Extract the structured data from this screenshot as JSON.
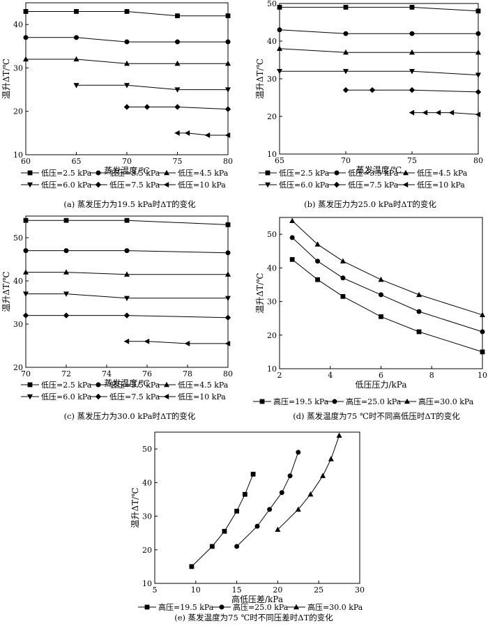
{
  "chart_data": [
    {
      "type": "line",
      "id": "a",
      "caption": "(a) 蒸发压力为19.5 kPa时ΔT的变化",
      "xlabel": "蒸发温度/℃",
      "ylabel": "温升ΔT/℃",
      "xlim": [
        60,
        80
      ],
      "ylim": [
        10,
        45
      ],
      "xticks": [
        60,
        65,
        70,
        75,
        80
      ],
      "yticks": [
        10,
        20,
        30,
        40
      ],
      "series": [
        {
          "name": "低压=2.5 kPa",
          "marker": "square",
          "x": [
            60,
            65,
            70,
            75,
            80
          ],
          "y": [
            43,
            43,
            43,
            42,
            42
          ]
        },
        {
          "name": "低压=3.5 kPa",
          "marker": "circle",
          "x": [
            60,
            65,
            70,
            75,
            80
          ],
          "y": [
            37,
            37,
            36,
            36,
            36
          ]
        },
        {
          "name": "低压=4.5 kPa",
          "marker": "triangle",
          "x": [
            60,
            65,
            70,
            75,
            80
          ],
          "y": [
            32,
            32,
            31,
            31,
            31
          ]
        },
        {
          "name": "低压=6.0 kPa",
          "marker": "tri-down",
          "x": [
            65,
            70,
            75,
            80
          ],
          "y": [
            26,
            26,
            25,
            25
          ]
        },
        {
          "name": "低压=7.5 kPa",
          "marker": "diamond",
          "x": [
            70,
            72,
            75,
            80
          ],
          "y": [
            21,
            21,
            21,
            20.5
          ]
        },
        {
          "name": "低压=10 kPa",
          "marker": "tri-left",
          "x": [
            75,
            76,
            78,
            80
          ],
          "y": [
            15,
            15,
            14.5,
            14.5
          ]
        }
      ]
    },
    {
      "type": "line",
      "id": "b",
      "caption": "(b) 蒸发压力为25.0 kPa时ΔT的变化",
      "xlabel": "蒸发温度/℃",
      "ylabel": "温升ΔT/℃",
      "xlim": [
        65,
        80
      ],
      "ylim": [
        10,
        50
      ],
      "xticks": [
        65,
        70,
        75,
        80
      ],
      "yticks": [
        10,
        20,
        30,
        40,
        50
      ],
      "series": [
        {
          "name": "低压=2.5 kPa",
          "marker": "square",
          "x": [
            65,
            70,
            75,
            80
          ],
          "y": [
            49,
            49,
            49,
            48
          ]
        },
        {
          "name": "低压=3.5 kPa",
          "marker": "circle",
          "x": [
            65,
            70,
            75,
            80
          ],
          "y": [
            43,
            42,
            42,
            42
          ]
        },
        {
          "name": "低压=4.5 kPa",
          "marker": "triangle",
          "x": [
            65,
            70,
            75,
            80
          ],
          "y": [
            38,
            37,
            37,
            37
          ]
        },
        {
          "name": "低压=6.0 kPa",
          "marker": "tri-down",
          "x": [
            65,
            70,
            75,
            80
          ],
          "y": [
            32,
            32,
            32,
            31
          ]
        },
        {
          "name": "低压=7.5 kPa",
          "marker": "diamond",
          "x": [
            70,
            72,
            75,
            80
          ],
          "y": [
            27,
            27,
            27,
            26.5
          ]
        },
        {
          "name": "低压=10 kPa",
          "marker": "tri-left",
          "x": [
            75,
            76,
            77,
            78,
            80
          ],
          "y": [
            21,
            21,
            21,
            21,
            20.5
          ]
        }
      ]
    },
    {
      "type": "line",
      "id": "c",
      "caption": "(c) 蒸发压力为30.0 kPa时ΔT的变化",
      "xlabel": "蒸发温度/℃",
      "ylabel": "温升ΔT/℃",
      "xlim": [
        70,
        80
      ],
      "ylim": [
        20,
        55
      ],
      "xticks": [
        70,
        72,
        74,
        76,
        78,
        80
      ],
      "yticks": [
        20,
        30,
        40,
        50
      ],
      "series": [
        {
          "name": "低压=2.5 kPa",
          "marker": "square",
          "x": [
            70,
            72,
            75,
            80
          ],
          "y": [
            54,
            54,
            54,
            53
          ]
        },
        {
          "name": "低压=3.5 kPa",
          "marker": "circle",
          "x": [
            70,
            72,
            75,
            80
          ],
          "y": [
            47,
            47,
            47,
            46.5
          ]
        },
        {
          "name": "低压=4.5 kPa",
          "marker": "triangle",
          "x": [
            70,
            72,
            75,
            80
          ],
          "y": [
            42,
            42,
            41.5,
            41.5
          ]
        },
        {
          "name": "低压=6.0 kPa",
          "marker": "tri-down",
          "x": [
            70,
            72,
            75,
            80
          ],
          "y": [
            37,
            37,
            36,
            36
          ]
        },
        {
          "name": "低压=7.5 kPa",
          "marker": "diamond",
          "x": [
            70,
            72,
            75,
            80
          ],
          "y": [
            32,
            32,
            32,
            31.5
          ]
        },
        {
          "name": "低压=10 kPa",
          "marker": "tri-left",
          "x": [
            75,
            76,
            78,
            80
          ],
          "y": [
            26,
            26,
            25.5,
            25.5
          ]
        }
      ]
    },
    {
      "type": "line",
      "id": "d",
      "caption": "(d) 蒸发温度为75 ℃时不同高低压时ΔT的变化",
      "xlabel": "低压压力/kPa",
      "ylabel": "温升ΔT/℃",
      "xlim": [
        2,
        10
      ],
      "ylim": [
        10,
        55
      ],
      "xticks": [
        2,
        4,
        6,
        8,
        10
      ],
      "yticks": [
        10,
        20,
        30,
        40,
        50
      ],
      "series": [
        {
          "name": "高压=19.5 kPa",
          "marker": "square",
          "x": [
            2.5,
            3.5,
            4.5,
            6.0,
            7.5,
            10
          ],
          "y": [
            42.5,
            36.5,
            31.5,
            25.5,
            21,
            15
          ]
        },
        {
          "name": "高压=25.0 kPa",
          "marker": "circle",
          "x": [
            2.5,
            3.5,
            4.5,
            6.0,
            7.5,
            10
          ],
          "y": [
            49,
            42,
            37,
            32,
            27,
            21
          ]
        },
        {
          "name": "高压=30.0 kPa",
          "marker": "triangle",
          "x": [
            2.5,
            3.5,
            4.5,
            6.0,
            7.5,
            10
          ],
          "y": [
            54,
            47,
            42,
            36.5,
            32,
            26
          ]
        }
      ]
    },
    {
      "type": "line",
      "id": "e",
      "caption": "(e) 蒸发温度为75 ℃时不同压差时ΔT的变化",
      "xlabel": "高低压差/kPa",
      "ylabel": "温升ΔT/℃",
      "xlim": [
        5,
        30
      ],
      "ylim": [
        10,
        55
      ],
      "xticks": [
        5,
        10,
        15,
        20,
        25,
        30
      ],
      "yticks": [
        10,
        20,
        30,
        40,
        50
      ],
      "series": [
        {
          "name": "高压=19.5 kPa",
          "marker": "square",
          "x": [
            9.5,
            12,
            13.5,
            15,
            16,
            17
          ],
          "y": [
            15,
            21,
            25.5,
            31.5,
            36.5,
            42.5
          ]
        },
        {
          "name": "高压=25.0 kPa",
          "marker": "circle",
          "x": [
            15,
            17.5,
            19,
            20.5,
            21.5,
            22.5
          ],
          "y": [
            21,
            27,
            32,
            37,
            42,
            49
          ]
        },
        {
          "name": "高压=30.0 kPa",
          "marker": "triangle",
          "x": [
            20,
            22.5,
            24,
            25.5,
            26.5,
            27.5
          ],
          "y": [
            26,
            32,
            36.5,
            42,
            47,
            54
          ]
        }
      ]
    }
  ]
}
